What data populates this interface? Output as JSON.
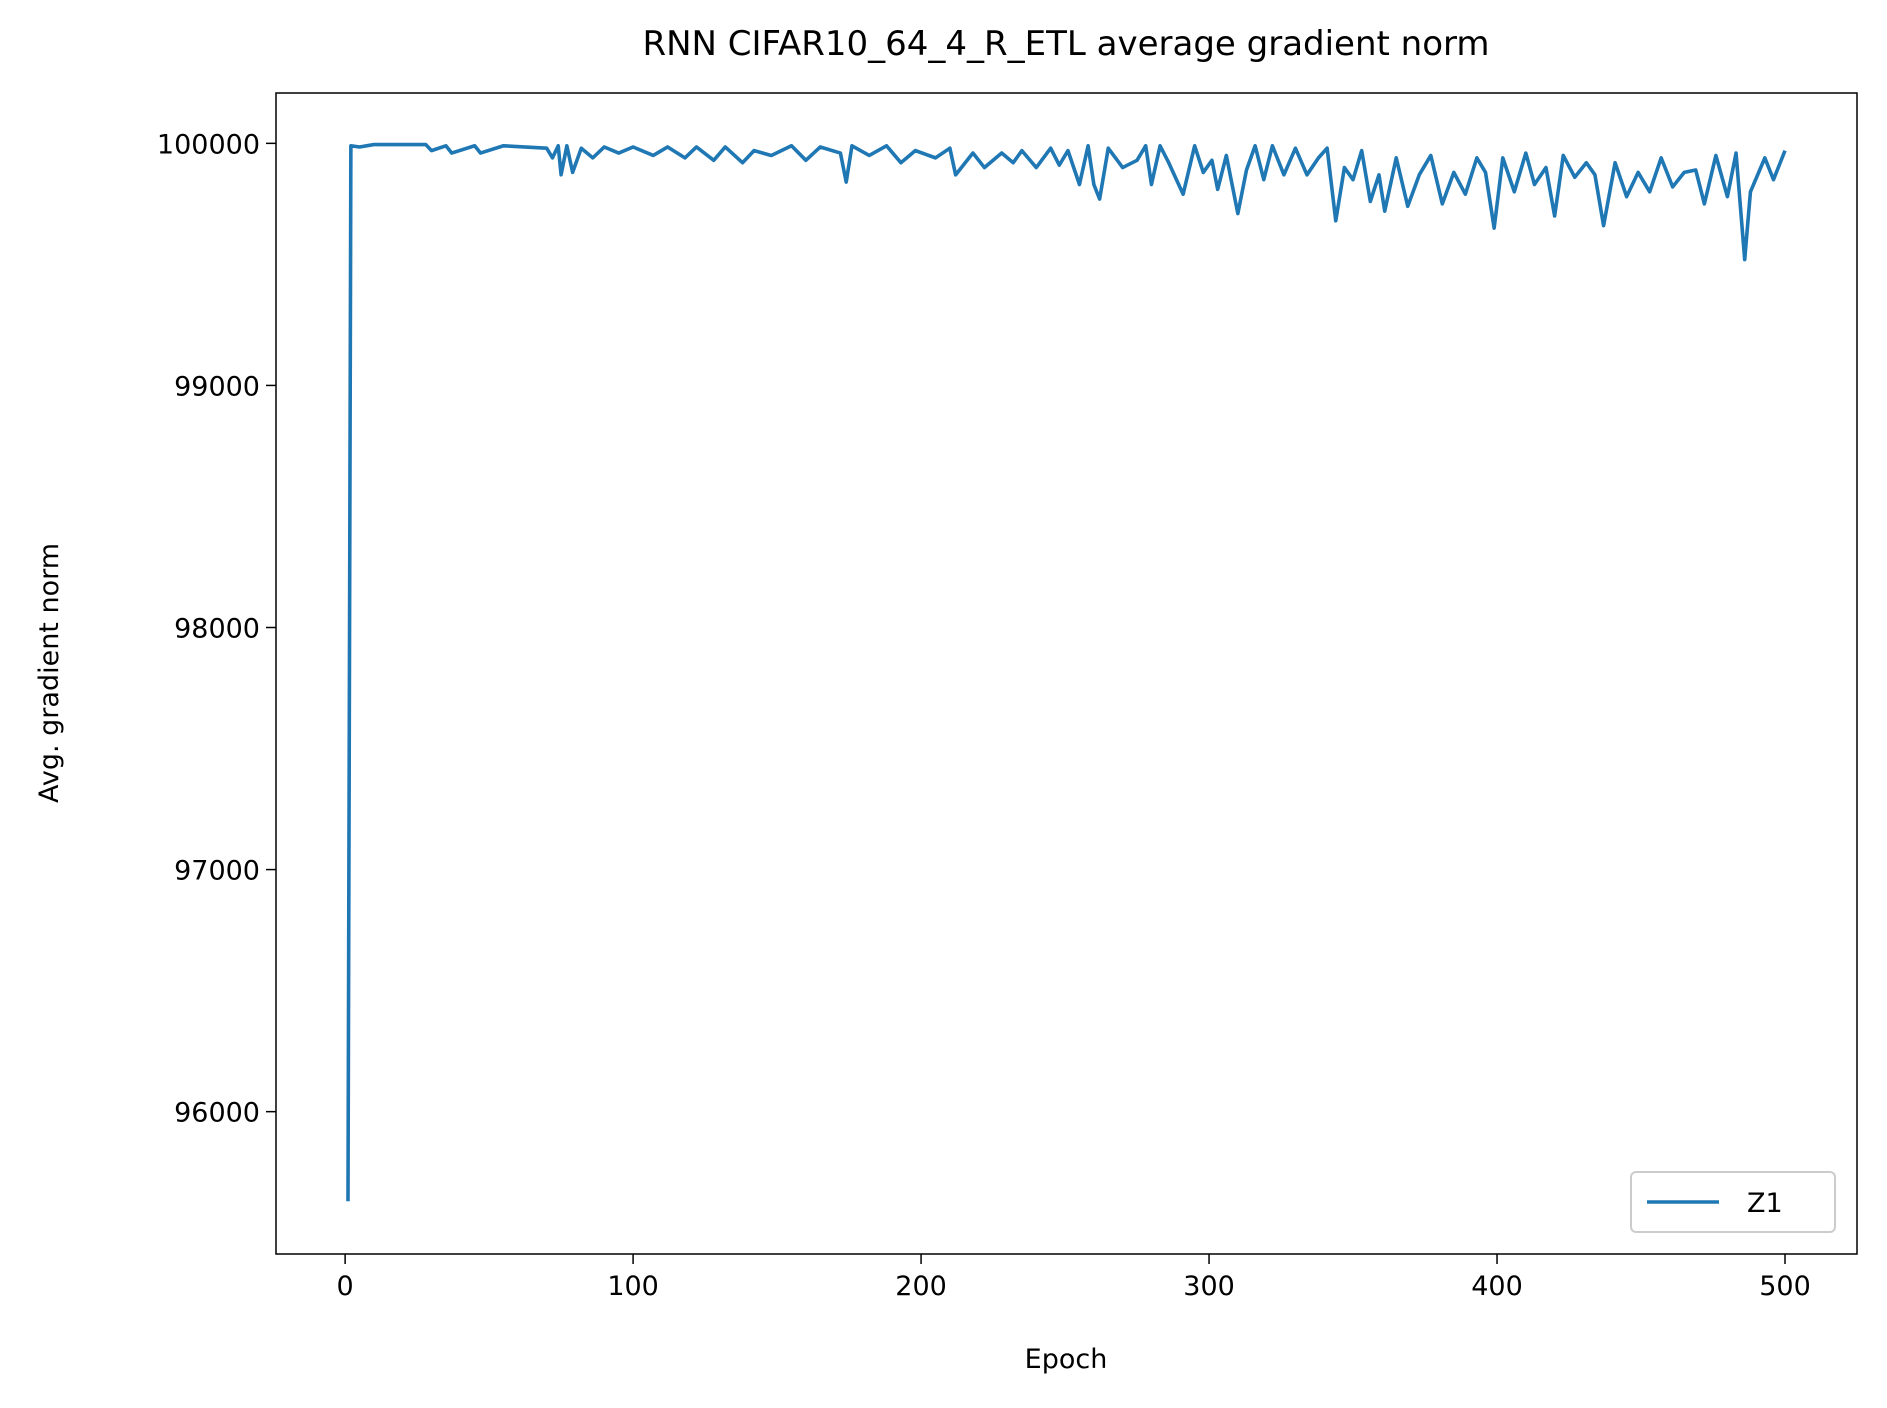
{
  "chart_data": {
    "type": "line",
    "title": "RNN CIFAR10_64_4_R_ETL average gradient norm",
    "x_label": "Epoch",
    "y_label": "Avg. gradient norm",
    "x": [
      1,
      2,
      5,
      10,
      20,
      28,
      30,
      35,
      37,
      45,
      47,
      55,
      62,
      70,
      72,
      74,
      75,
      77,
      79,
      82,
      86,
      90,
      95,
      100,
      107,
      112,
      118,
      122,
      128,
      132,
      138,
      142,
      148,
      155,
      160,
      165,
      172,
      174,
      176,
      182,
      188,
      193,
      198,
      205,
      210,
      212,
      218,
      222,
      228,
      232,
      235,
      240,
      245,
      248,
      251,
      255,
      258,
      260,
      262,
      265,
      270,
      275,
      278,
      280,
      283,
      286,
      291,
      295,
      298,
      301,
      303,
      306,
      310,
      313,
      316,
      319,
      322,
      326,
      330,
      334,
      338,
      341,
      344,
      347,
      350,
      353,
      356,
      359,
      361,
      365,
      369,
      373,
      377,
      381,
      385,
      389,
      393,
      396,
      399,
      402,
      406,
      410,
      413,
      417,
      420,
      423,
      427,
      431,
      434,
      437,
      441,
      445,
      449,
      453,
      457,
      461,
      465,
      469,
      472,
      476,
      480,
      483,
      486,
      488,
      493,
      496,
      500
    ],
    "series": [
      {
        "name": "Z1",
        "color": "#1f77b4",
        "values": [
          95630,
          99990,
          99985,
          99995,
          99995,
          99995,
          99970,
          99990,
          99960,
          99990,
          99960,
          99990,
          99985,
          99980,
          99940,
          99990,
          99870,
          99990,
          99880,
          99980,
          99940,
          99985,
          99960,
          99985,
          99950,
          99985,
          99940,
          99985,
          99930,
          99985,
          99920,
          99970,
          99950,
          99990,
          99930,
          99985,
          99960,
          99840,
          99990,
          99950,
          99990,
          99920,
          99970,
          99940,
          99980,
          99870,
          99960,
          99900,
          99960,
          99920,
          99970,
          99900,
          99980,
          99910,
          99970,
          99830,
          99990,
          99830,
          99770,
          99980,
          99900,
          99930,
          99990,
          99830,
          99990,
          99920,
          99790,
          99990,
          99880,
          99930,
          99810,
          99950,
          99710,
          99890,
          99990,
          99850,
          99990,
          99870,
          99980,
          99870,
          99940,
          99980,
          99680,
          99900,
          99850,
          99970,
          99760,
          99870,
          99720,
          99940,
          99740,
          99870,
          99950,
          99750,
          99880,
          99790,
          99940,
          99880,
          99650,
          99940,
          99800,
          99960,
          99830,
          99900,
          99700,
          99950,
          99860,
          99920,
          99870,
          99660,
          99920,
          99780,
          99880,
          99800,
          99940,
          99820,
          99880,
          99890,
          99750,
          99950,
          99780,
          99960,
          99520,
          99800,
          99940,
          99850,
          99970
        ]
      }
    ],
    "xlim": [
      -24,
      525
    ],
    "ylim": [
      95412,
      100208
    ],
    "xticks": [
      0,
      100,
      200,
      300,
      400,
      500
    ],
    "yticks": [
      96000,
      97000,
      98000,
      99000,
      100000
    ],
    "legend": "lower right",
    "grid": false
  }
}
